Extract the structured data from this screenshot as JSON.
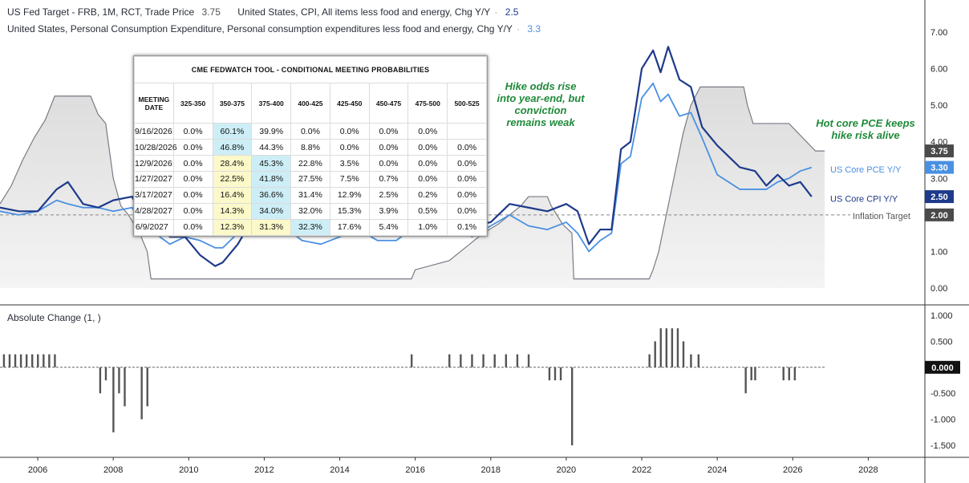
{
  "legend": {
    "line1_name": "US Fed Target - FRB, 1M, RCT, Trade Price",
    "line1_value": "3.75",
    "line1b_name": "United States, CPI, All items less food and energy, Chg Y/Y",
    "line1b_value": "2.5",
    "line2_name": "United States, Personal Consumption Expenditure, Personal consumption expenditures less food and energy, Chg Y/Y",
    "line2_value": "3.3"
  },
  "lower_pane_title": "Absolute Change (1, )",
  "annotations": {
    "hike_odds": [
      "Hike odds rise",
      "into year-end, but",
      "conviction",
      "remains weak"
    ],
    "hot_pce": [
      "Hot core PCE keeps",
      "hike risk alive"
    ]
  },
  "series_labels": {
    "pce": "US Core PCE Y/Y",
    "cpi": "US Core CPI Y/Y",
    "target": "Inflation Target"
  },
  "price_badges": {
    "fed": "3.75",
    "pce": "3.30",
    "cpi": "2.50",
    "target": "2.00",
    "change": "0.000"
  },
  "colors": {
    "fed": "#787b86",
    "cpi": "#1e3a8a",
    "pce": "#4a90e2",
    "bars": "#555555",
    "annotation": "#1f8a3a"
  },
  "fedwatch_table": {
    "title": "CME FEDWATCH TOOL - CONDITIONAL MEETING PROBABILITIES",
    "headers": [
      "MEETING DATE",
      "325-350",
      "350-375",
      "375-400",
      "400-425",
      "425-450",
      "450-475",
      "475-500",
      "500-525"
    ],
    "rows": [
      {
        "date": "9/16/2026",
        "cells": [
          "0.0%",
          "60.1%",
          "39.9%",
          "0.0%",
          "0.0%",
          "0.0%",
          "0.0%",
          ""
        ],
        "hi": [
          1
        ],
        "mid": []
      },
      {
        "date": "10/28/2026",
        "cells": [
          "0.0%",
          "46.8%",
          "44.3%",
          "8.8%",
          "0.0%",
          "0.0%",
          "0.0%",
          "0.0%"
        ],
        "hi": [
          1
        ],
        "mid": []
      },
      {
        "date": "12/9/2026",
        "cells": [
          "0.0%",
          "28.4%",
          "45.3%",
          "22.8%",
          "3.5%",
          "0.0%",
          "0.0%",
          "0.0%"
        ],
        "hi": [
          2
        ],
        "mid": [
          1
        ]
      },
      {
        "date": "1/27/2027",
        "cells": [
          "0.0%",
          "22.5%",
          "41.8%",
          "27.5%",
          "7.5%",
          "0.7%",
          "0.0%",
          "0.0%"
        ],
        "hi": [
          2
        ],
        "mid": [
          1
        ]
      },
      {
        "date": "3/17/2027",
        "cells": [
          "0.0%",
          "16.4%",
          "36.6%",
          "31.4%",
          "12.9%",
          "2.5%",
          "0.2%",
          "0.0%"
        ],
        "hi": [
          2
        ],
        "mid": [
          1
        ]
      },
      {
        "date": "4/28/2027",
        "cells": [
          "0.0%",
          "14.3%",
          "34.0%",
          "32.0%",
          "15.3%",
          "3.9%",
          "0.5%",
          "0.0%"
        ],
        "hi": [
          2
        ],
        "mid": [
          1
        ]
      },
      {
        "date": "6/9/2027",
        "cells": [
          "0.0%",
          "12.3%",
          "31.3%",
          "32.3%",
          "17.6%",
          "5.4%",
          "1.0%",
          "0.1%"
        ],
        "hi": [
          3
        ],
        "mid": [
          1,
          2
        ]
      }
    ]
  },
  "chart_data": [
    {
      "type": "line",
      "x_range": [
        2005.0,
        2029.5
      ],
      "ylim": [
        -0.35,
        7.3
      ],
      "x_ticks": [
        "2006",
        "2008",
        "2010",
        "2012",
        "2014",
        "2016",
        "2018",
        "2020",
        "2022",
        "2024",
        "2026",
        "2028"
      ],
      "y_ticks": [
        "0.00",
        "1.00",
        "2.00",
        "3.00",
        "4.00",
        "5.00",
        "6.00",
        "7.00"
      ],
      "inflation_target": 2.0,
      "series": [
        {
          "name": "US Fed Target - FRB, 1M, RCT, Trade Price",
          "key": "fed",
          "x": [
            2005.0,
            2005.3,
            2005.6,
            2005.9,
            2006.2,
            2006.45,
            2006.6,
            2007.4,
            2007.6,
            2007.8,
            2008.0,
            2008.2,
            2008.4,
            2008.7,
            2008.9,
            2009.0,
            2015.9,
            2016.0,
            2016.9,
            2017.2,
            2017.5,
            2017.8,
            2018.2,
            2018.5,
            2018.8,
            2019.0,
            2019.5,
            2019.6,
            2019.75,
            2019.9,
            2020.15,
            2020.2,
            2022.2,
            2022.3,
            2022.45,
            2022.6,
            2022.75,
            2022.9,
            2023.0,
            2023.1,
            2023.3,
            2023.55,
            2024.7,
            2024.8,
            2024.95,
            2025.9,
            2026.6
          ],
          "y": [
            2.3,
            2.8,
            3.5,
            4.1,
            4.6,
            5.25,
            5.25,
            5.25,
            4.75,
            4.5,
            3.0,
            2.25,
            2.0,
            1.5,
            1.0,
            0.25,
            0.25,
            0.5,
            0.75,
            1.0,
            1.25,
            1.5,
            1.75,
            2.0,
            2.25,
            2.5,
            2.5,
            2.25,
            2.0,
            1.75,
            1.5,
            0.25,
            0.25,
            0.5,
            1.0,
            1.75,
            2.5,
            3.25,
            3.75,
            4.25,
            5.0,
            5.5,
            5.5,
            5.0,
            4.5,
            4.5,
            3.75
          ]
        },
        {
          "name": "United States, CPI, All items less food and energy, Chg Y/Y",
          "key": "cpi",
          "x": [
            2005.0,
            2005.5,
            2006.0,
            2006.5,
            2006.8,
            2007.2,
            2007.6,
            2008.0,
            2008.5,
            2008.8,
            2009.1,
            2009.5,
            2009.9,
            2010.3,
            2010.7,
            2010.9,
            2011.3,
            2011.7,
            2012.0,
            2012.5,
            2013.0,
            2013.5,
            2014.0,
            2014.5,
            2015.0,
            2015.5,
            2016.0,
            2016.5,
            2017.0,
            2017.5,
            2018.0,
            2018.5,
            2019.0,
            2019.5,
            2020.0,
            2020.3,
            2020.6,
            2020.9,
            2021.2,
            2021.45,
            2021.7,
            2022.0,
            2022.3,
            2022.5,
            2022.7,
            2023.0,
            2023.3,
            2023.6,
            2024.0,
            2024.3,
            2024.6,
            2025.0,
            2025.3,
            2025.6,
            2025.9,
            2026.2,
            2026.5
          ],
          "y": [
            2.2,
            2.1,
            2.1,
            2.7,
            2.9,
            2.3,
            2.2,
            2.4,
            2.5,
            1.9,
            1.8,
            1.4,
            1.4,
            0.9,
            0.6,
            0.7,
            1.2,
            1.9,
            2.2,
            2.1,
            1.9,
            1.7,
            1.6,
            1.9,
            1.6,
            1.8,
            2.2,
            2.2,
            2.2,
            1.7,
            1.8,
            2.3,
            2.2,
            2.1,
            2.3,
            2.1,
            1.2,
            1.6,
            1.6,
            3.8,
            4.0,
            6.0,
            6.5,
            5.9,
            6.6,
            5.7,
            5.5,
            4.4,
            3.9,
            3.6,
            3.3,
            3.2,
            2.8,
            3.1,
            2.8,
            2.9,
            2.5
          ]
        },
        {
          "name": "United States, Personal Consumption Expenditure, Personal consumption expenditures less food and energy, Chg Y/Y",
          "key": "pce",
          "x": [
            2005.0,
            2005.5,
            2006.0,
            2006.5,
            2006.8,
            2007.2,
            2007.6,
            2008.0,
            2008.5,
            2008.8,
            2009.1,
            2009.5,
            2009.9,
            2010.3,
            2010.7,
            2010.9,
            2011.3,
            2011.7,
            2012.0,
            2012.5,
            2013.0,
            2013.5,
            2014.0,
            2014.5,
            2015.0,
            2015.5,
            2016.0,
            2016.5,
            2017.0,
            2017.5,
            2018.0,
            2018.5,
            2019.0,
            2019.5,
            2020.0,
            2020.3,
            2020.6,
            2020.9,
            2021.2,
            2021.45,
            2021.7,
            2022.0,
            2022.3,
            2022.5,
            2022.7,
            2023.0,
            2023.3,
            2023.6,
            2024.0,
            2024.3,
            2024.6,
            2025.0,
            2025.3,
            2025.6,
            2025.9,
            2026.2,
            2026.5
          ],
          "y": [
            2.1,
            2.0,
            2.1,
            2.4,
            2.3,
            2.2,
            2.2,
            2.1,
            2.2,
            1.7,
            1.5,
            1.2,
            1.4,
            1.3,
            1.1,
            1.1,
            1.5,
            1.8,
            1.8,
            1.7,
            1.3,
            1.2,
            1.4,
            1.6,
            1.3,
            1.3,
            1.7,
            1.6,
            1.8,
            1.4,
            1.7,
            2.0,
            1.7,
            1.6,
            1.8,
            1.5,
            1.0,
            1.3,
            1.5,
            3.4,
            3.6,
            5.2,
            5.6,
            5.1,
            5.3,
            4.7,
            4.8,
            4.1,
            3.1,
            2.9,
            2.7,
            2.7,
            2.7,
            2.9,
            3.0,
            3.2,
            3.3
          ]
        }
      ]
    },
    {
      "type": "bar",
      "ylim": [
        -1.7,
        1.1
      ],
      "y_ticks": [
        "1.000",
        "0.500",
        "0.000",
        "-0.500",
        "-1.000",
        "-1.500"
      ],
      "x": [
        2005.1,
        2005.25,
        2005.4,
        2005.55,
        2005.7,
        2005.85,
        2006.0,
        2006.15,
        2006.3,
        2006.45,
        2007.65,
        2007.8,
        2008.0,
        2008.15,
        2008.3,
        2008.75,
        2008.9,
        2015.9,
        2016.9,
        2017.2,
        2017.5,
        2017.8,
        2018.1,
        2018.4,
        2018.7,
        2019.0,
        2019.55,
        2019.7,
        2019.85,
        2020.15,
        2022.2,
        2022.35,
        2022.5,
        2022.65,
        2022.8,
        2022.95,
        2023.1,
        2023.3,
        2023.5,
        2024.75,
        2024.9,
        2025.0,
        2025.75,
        2025.9,
        2026.05
      ],
      "values": [
        0.25,
        0.25,
        0.25,
        0.25,
        0.25,
        0.25,
        0.25,
        0.25,
        0.25,
        0.25,
        -0.5,
        -0.25,
        -1.25,
        -0.5,
        -0.75,
        -1.0,
        -0.75,
        0.25,
        0.25,
        0.25,
        0.25,
        0.25,
        0.25,
        0.25,
        0.25,
        0.25,
        -0.25,
        -0.25,
        -0.25,
        -1.5,
        0.25,
        0.5,
        0.75,
        0.75,
        0.75,
        0.75,
        0.5,
        0.25,
        0.25,
        -0.5,
        -0.25,
        -0.25,
        -0.25,
        -0.25,
        -0.25
      ]
    }
  ]
}
